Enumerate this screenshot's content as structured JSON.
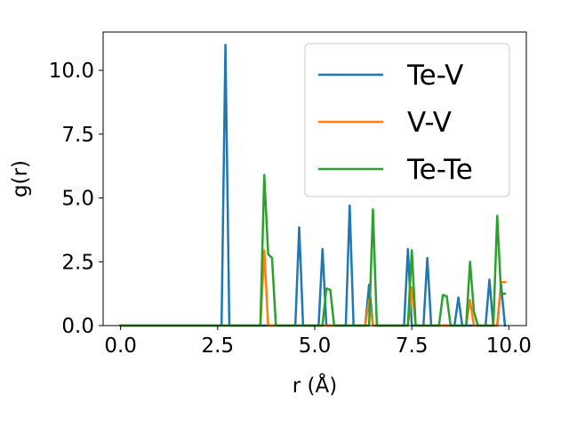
{
  "chart_data": {
    "type": "line",
    "xlabel": "r (Å)",
    "ylabel": "g(r)",
    "xlim": [
      -0.45,
      10.45
    ],
    "ylim": [
      0,
      11.5
    ],
    "x_ticks": [
      0.0,
      2.5,
      5.0,
      7.5,
      10.0
    ],
    "x_tick_labels": [
      "0.0",
      "2.5",
      "5.0",
      "7.5",
      "10.0"
    ],
    "y_ticks": [
      0.0,
      2.5,
      5.0,
      7.5,
      10.0
    ],
    "y_tick_labels": [
      "0.0",
      "2.5",
      "5.0",
      "7.5",
      "10.0"
    ],
    "grid": false,
    "legend_position": "top-right",
    "series": [
      {
        "name": "Te-V",
        "color": "#1f77b4",
        "x": [
          0.0,
          2.6,
          2.7,
          2.8,
          4.5,
          4.6,
          4.7,
          5.1,
          5.2,
          5.3,
          5.8,
          5.9,
          6.0,
          6.3,
          6.4,
          6.5,
          7.3,
          7.4,
          7.5,
          7.8,
          7.9,
          8.0,
          8.6,
          8.7,
          8.8,
          9.4,
          9.5,
          9.6,
          9.7,
          9.8,
          9.9
        ],
        "y": [
          0.0,
          0.0,
          11.0,
          0.0,
          0.0,
          3.85,
          0.0,
          0.0,
          3.0,
          0.0,
          0.0,
          4.7,
          0.0,
          0.0,
          1.6,
          0.0,
          0.0,
          3.0,
          0.0,
          0.0,
          2.65,
          0.0,
          0.0,
          1.1,
          0.0,
          0.0,
          1.8,
          0.0,
          0.0,
          1.6,
          0.0
        ]
      },
      {
        "name": "V-V",
        "color": "#ff7f0e",
        "x": [
          0.0,
          3.6,
          3.7,
          3.8,
          6.3,
          6.4,
          6.5,
          7.4,
          7.5,
          7.6,
          8.9,
          9.0,
          9.1,
          9.7,
          9.8,
          9.9
        ],
        "y": [
          0.0,
          0.0,
          2.95,
          0.0,
          0.0,
          1.0,
          0.0,
          0.0,
          1.5,
          0.0,
          0.0,
          1.0,
          0.0,
          0.0,
          1.7,
          1.7
        ]
      },
      {
        "name": "Te-Te",
        "color": "#2ca02c",
        "x": [
          0.0,
          3.6,
          3.7,
          3.8,
          3.9,
          4.0,
          5.2,
          5.3,
          5.4,
          5.5,
          6.4,
          6.5,
          6.6,
          7.4,
          7.5,
          7.6,
          8.2,
          8.3,
          8.4,
          8.5,
          8.9,
          9.0,
          9.1,
          9.2,
          9.6,
          9.7,
          9.8,
          9.9
        ],
        "y": [
          0.0,
          0.0,
          5.9,
          2.8,
          2.65,
          0.0,
          0.0,
          1.45,
          1.4,
          0.0,
          0.0,
          4.55,
          0.0,
          0.0,
          2.95,
          0.0,
          0.0,
          1.2,
          1.15,
          0.0,
          0.0,
          2.5,
          0.55,
          0.0,
          0.0,
          4.3,
          1.25,
          1.25
        ]
      }
    ]
  }
}
